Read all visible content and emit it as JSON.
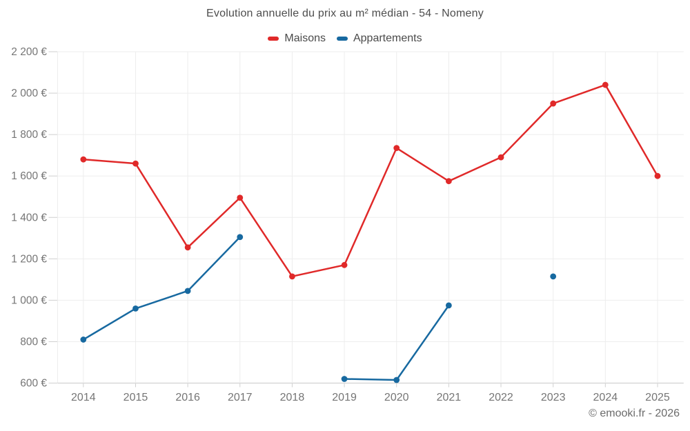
{
  "header": {
    "title": "Evolution annuelle du prix au m² médian - 54 - Nomeny"
  },
  "footer": {
    "credit": "© emooki.fr - 2026"
  },
  "colors": {
    "maisons": "#e02929",
    "appartements": "#1769a0",
    "grid": "#ededed",
    "axis": "#c9c9c9",
    "tick": "#cfcfcf",
    "tick_label": "#757575"
  },
  "chart_data": {
    "type": "line",
    "title": "Evolution annuelle du prix au m² médian - 54 - Nomeny",
    "categories": [
      "2014",
      "2015",
      "2016",
      "2017",
      "2018",
      "2019",
      "2020",
      "2021",
      "2022",
      "2023",
      "2024",
      "2025"
    ],
    "series": [
      {
        "name": "Maisons",
        "color": "#e02929",
        "values": [
          1680,
          1660,
          1255,
          1495,
          1115,
          1170,
          1735,
          1575,
          1690,
          1950,
          2040,
          1600
        ]
      },
      {
        "name": "Appartements",
        "color": "#1769a0",
        "values": [
          810,
          960,
          1045,
          1305,
          null,
          620,
          615,
          975,
          null,
          1115,
          null,
          null
        ]
      }
    ],
    "ylim": [
      600,
      2200
    ],
    "yticks": [
      600,
      800,
      1000,
      1200,
      1400,
      1600,
      1800,
      2000,
      2200
    ],
    "ytick_labels": [
      "600 €",
      "800 €",
      "1 000 €",
      "1 200 €",
      "1 400 €",
      "1 600 €",
      "1 800 €",
      "2 000 €",
      "2 200 €"
    ],
    "grid": true,
    "legend_position": "top"
  }
}
